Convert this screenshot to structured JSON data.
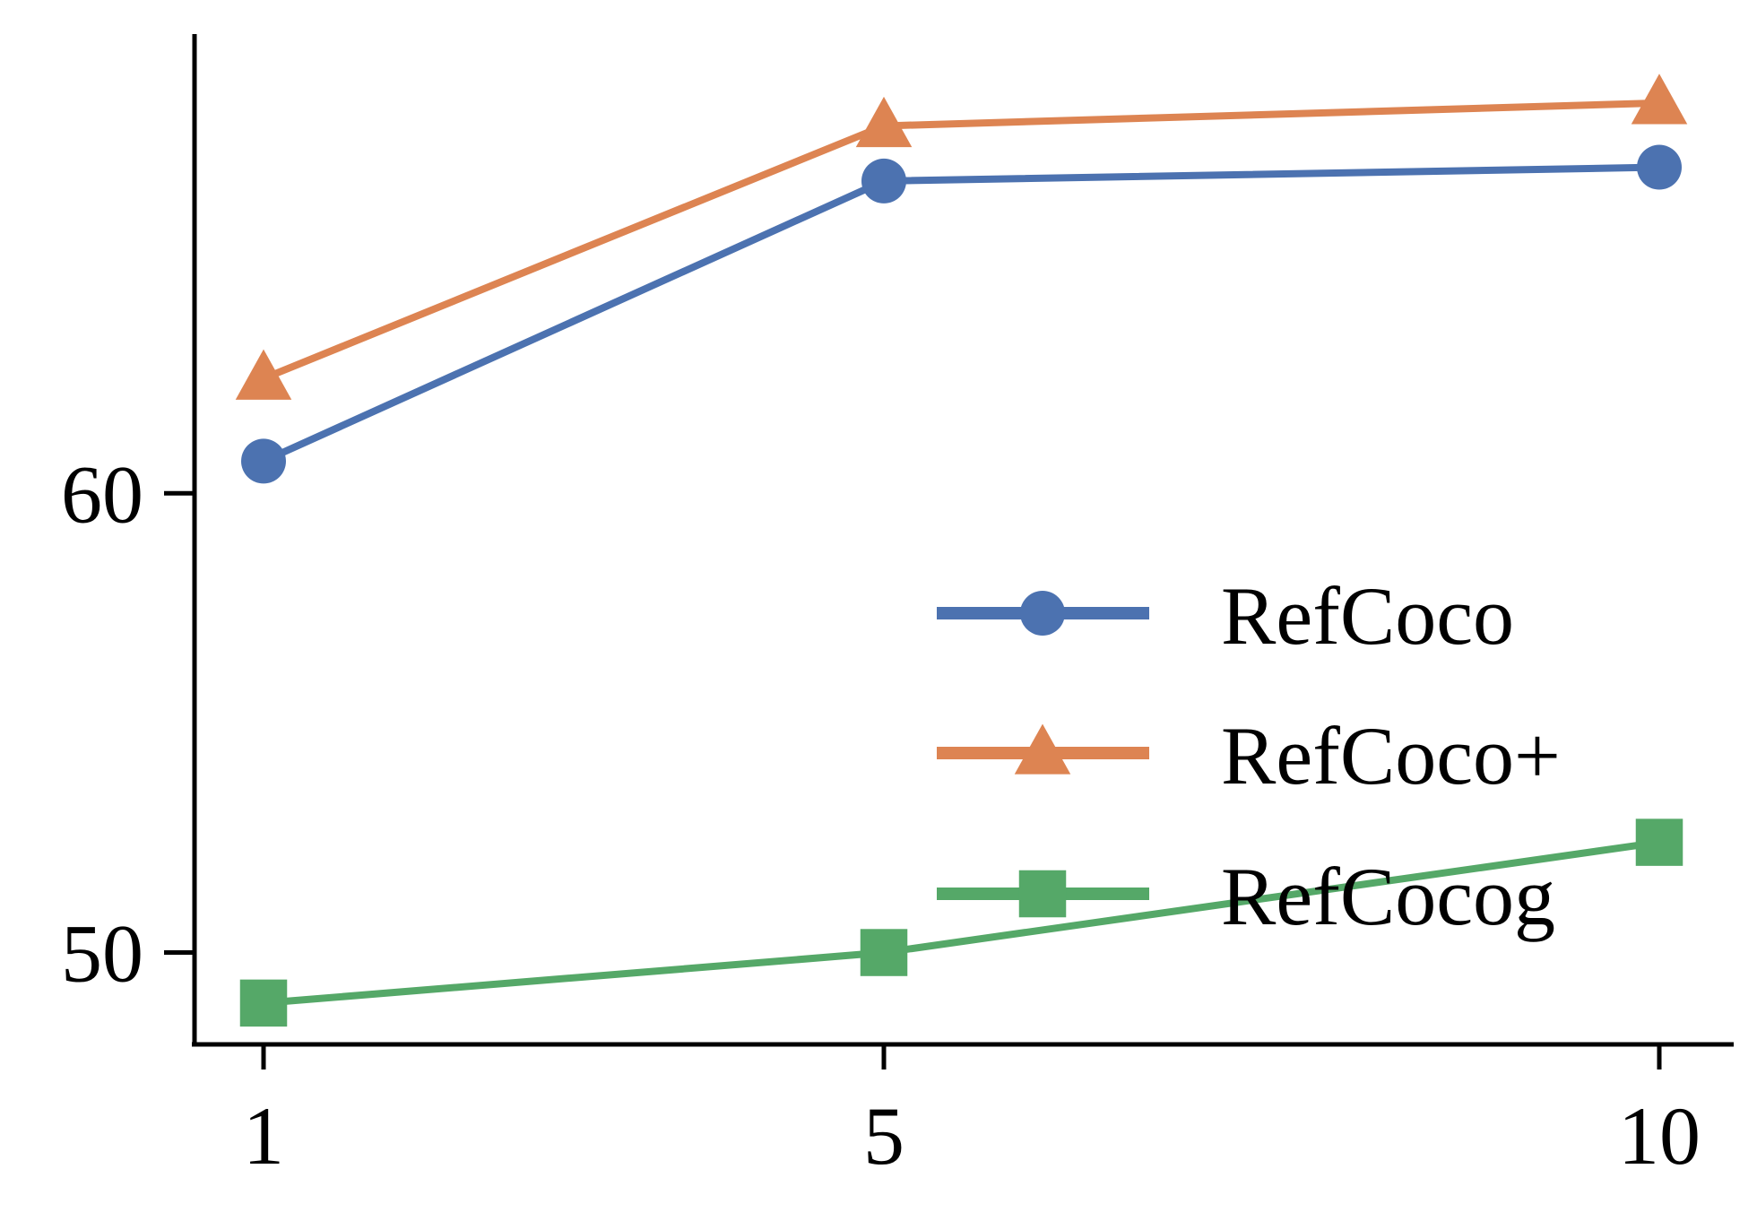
{
  "chart_data": {
    "type": "line",
    "x": [
      1,
      5,
      10
    ],
    "x_ticks": [
      "1",
      "5",
      "10"
    ],
    "y_ticks": [
      "50",
      "60"
    ],
    "ylim": [
      48,
      70
    ],
    "xlim": [
      0.55,
      10.45
    ],
    "title": "",
    "xlabel": "",
    "ylabel": "",
    "grid": false,
    "legend_position": "center-right",
    "series": [
      {
        "name": "RefCoco",
        "values": [
          60.7,
          66.8,
          67.1
        ],
        "color": "#4c72b0",
        "marker": "circle"
      },
      {
        "name": "RefCoco+",
        "values": [
          62.5,
          68.0,
          68.5
        ],
        "color": "#dd8452",
        "marker": "triangle"
      },
      {
        "name": "RefCocog",
        "values": [
          48.9,
          50.0,
          52.4
        ],
        "color": "#55a868",
        "marker": "square"
      }
    ]
  }
}
